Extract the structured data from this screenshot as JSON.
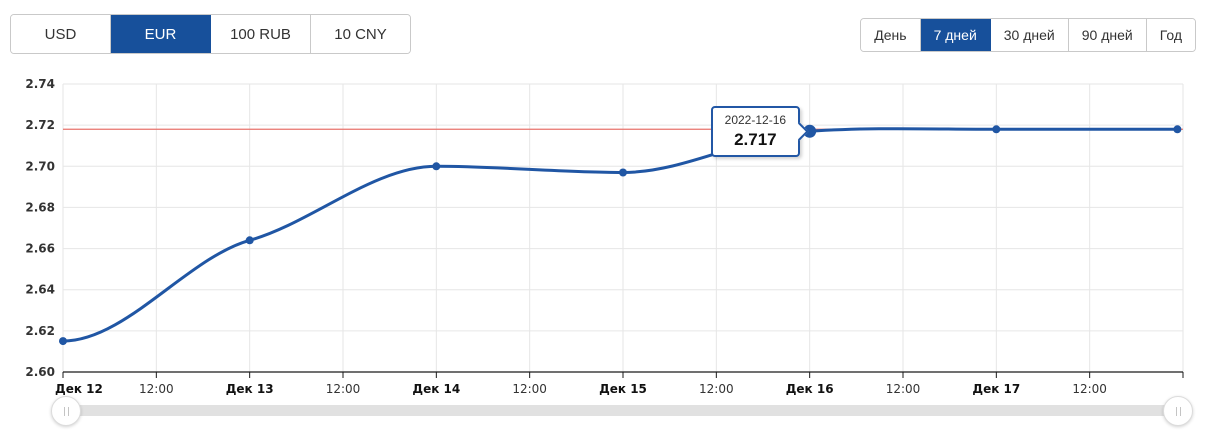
{
  "currency_selector": {
    "options": [
      {
        "label": "USD",
        "selected": false
      },
      {
        "label": "EUR",
        "selected": true
      },
      {
        "label": "100 RUB",
        "selected": false
      },
      {
        "label": "10 CNY",
        "selected": false
      }
    ]
  },
  "period_selector": {
    "options": [
      {
        "label": "День",
        "selected": false
      },
      {
        "label": "7 дней",
        "selected": true
      },
      {
        "label": "30 дней",
        "selected": false
      },
      {
        "label": "90 дней",
        "selected": false
      },
      {
        "label": "Год",
        "selected": false
      }
    ]
  },
  "tooltip": {
    "date": "2022-12-16",
    "value": "2.717"
  },
  "chart_data": {
    "type": "line",
    "title": "",
    "xlabel": "",
    "ylabel": "",
    "ylim": [
      2.6,
      2.74
    ],
    "y_ticks": [
      2.6,
      2.62,
      2.64,
      2.66,
      2.68,
      2.7,
      2.72,
      2.74
    ],
    "x_tick_labels": [
      "Дек 12",
      "12:00",
      "Дек 13",
      "12:00",
      "Дек 14",
      "12:00",
      "Дек 15",
      "12:00",
      "Дек 16",
      "12:00",
      "Дек 17",
      "12:00",
      ""
    ],
    "grid": true,
    "legend": false,
    "reference_line_value": 2.718,
    "series": [
      {
        "name": "EUR",
        "points": [
          {
            "date": "2022-12-12",
            "tick": 0,
            "value": 2.615
          },
          {
            "date": "2022-12-13",
            "tick": 2,
            "value": 2.664
          },
          {
            "date": "2022-12-14",
            "tick": 4,
            "value": 2.7
          },
          {
            "date": "2022-12-15",
            "tick": 6,
            "value": 2.697
          },
          {
            "date": "2022-12-16",
            "tick": 8,
            "value": 2.717,
            "hovered": true
          },
          {
            "date": "2022-12-17",
            "tick": 10,
            "value": 2.718
          },
          {
            "date": "2022-12-18",
            "tick": 11.94,
            "value": 2.718
          }
        ]
      }
    ],
    "colors": {
      "line": "#2056a4",
      "point": "#2056a4",
      "reference_line": "#e8736c",
      "grid": "#e6e6e6",
      "axis": "#1a1a1a"
    }
  },
  "scrollbar": {
    "handle_icon": "drag-handle"
  }
}
